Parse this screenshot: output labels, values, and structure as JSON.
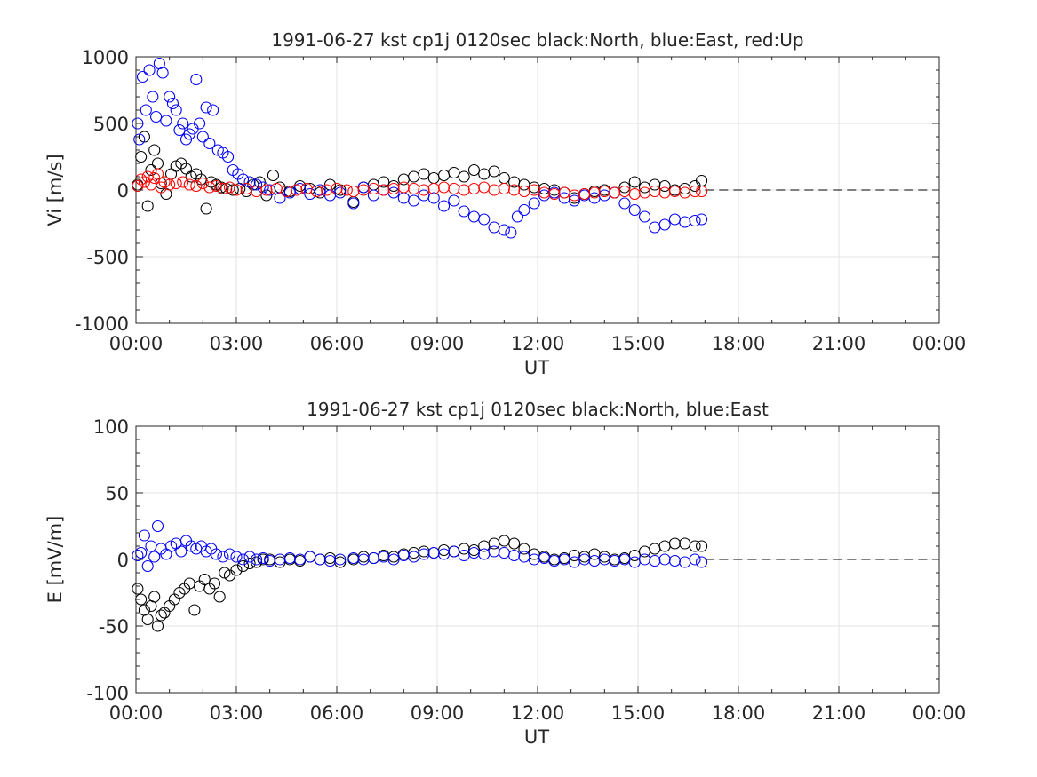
{
  "chart_data": [
    {
      "type": "scatter",
      "title": "1991-06-27 kst cp1j 0120sec black:North, blue:East, red:Up",
      "xlabel": "UT",
      "ylabel": "Vi [m/s]",
      "xlim": [
        0,
        24
      ],
      "ylim": [
        -1000,
        1000
      ],
      "x_unit": "hours UT",
      "xticks": [
        "00:00",
        "03:00",
        "06:00",
        "09:00",
        "12:00",
        "15:00",
        "18:00",
        "21:00",
        "00:00"
      ],
      "yticks": [
        "1000",
        "500",
        "0",
        "-500",
        "-1000"
      ],
      "ytick_values": [
        1000,
        500,
        0,
        -500,
        -1000
      ],
      "grid": true,
      "zero_line": {
        "from_x": 17.0,
        "to_x": 24,
        "y": 0,
        "style": "dashed"
      },
      "series": [
        {
          "color": "#000000",
          "x": [
            0.05,
            0.15,
            0.25,
            0.35,
            0.45,
            0.55,
            0.65,
            0.75,
            0.9,
            1.05,
            1.2,
            1.35,
            1.5,
            1.65,
            1.8,
            1.95,
            2.1,
            2.25,
            2.4,
            2.55,
            2.7,
            2.9,
            3.1,
            3.3,
            3.5,
            3.7,
            3.9,
            4.1,
            4.3,
            4.6,
            4.9,
            5.2,
            5.5,
            5.8,
            6.1,
            6.5,
            6.8,
            7.1,
            7.4,
            7.7,
            8.0,
            8.3,
            8.6,
            8.9,
            9.2,
            9.5,
            9.8,
            10.1,
            10.4,
            10.7,
            11.0,
            11.3,
            11.6,
            11.9,
            12.2,
            12.5,
            12.8,
            13.1,
            13.4,
            13.7,
            14.0,
            14.3,
            14.6,
            14.9,
            15.2,
            15.5,
            15.8,
            16.1,
            16.4,
            16.7,
            16.9
          ],
          "y": [
            40,
            250,
            400,
            -120,
            150,
            300,
            200,
            50,
            -30,
            120,
            180,
            200,
            160,
            100,
            120,
            80,
            -140,
            60,
            40,
            20,
            10,
            0,
            10,
            -10,
            40,
            60,
            -40,
            110,
            20,
            -10,
            30,
            10,
            -20,
            40,
            0,
            -90,
            20,
            40,
            60,
            30,
            80,
            100,
            120,
            90,
            110,
            130,
            100,
            150,
            120,
            140,
            90,
            60,
            40,
            20,
            10,
            0,
            -20,
            -60,
            -30,
            -10,
            0,
            -20,
            20,
            60,
            20,
            40,
            30,
            0,
            10,
            30,
            70
          ]
        },
        {
          "color": "#0000ff",
          "x": [
            0.05,
            0.1,
            0.2,
            0.3,
            0.4,
            0.5,
            0.6,
            0.7,
            0.8,
            0.9,
            1.0,
            1.1,
            1.2,
            1.3,
            1.4,
            1.5,
            1.6,
            1.7,
            1.8,
            1.9,
            2.0,
            2.1,
            2.2,
            2.3,
            2.45,
            2.6,
            2.75,
            2.9,
            3.05,
            3.2,
            3.4,
            3.6,
            3.8,
            4.0,
            4.3,
            4.6,
            4.9,
            5.2,
            5.5,
            5.8,
            6.1,
            6.5,
            6.8,
            7.1,
            7.4,
            7.7,
            8.0,
            8.3,
            8.6,
            8.9,
            9.2,
            9.5,
            9.8,
            10.1,
            10.4,
            10.7,
            11.0,
            11.2,
            11.4,
            11.6,
            11.9,
            12.2,
            12.5,
            12.8,
            13.1,
            13.4,
            13.7,
            14.0,
            14.3,
            14.6,
            14.9,
            15.2,
            15.5,
            15.8,
            16.1,
            16.4,
            16.7,
            16.9
          ],
          "y": [
            500,
            380,
            850,
            600,
            900,
            700,
            550,
            950,
            880,
            520,
            700,
            650,
            600,
            450,
            500,
            380,
            420,
            460,
            830,
            500,
            400,
            620,
            350,
            600,
            300,
            280,
            250,
            150,
            120,
            80,
            60,
            40,
            20,
            0,
            -60,
            -20,
            10,
            -30,
            0,
            -40,
            -20,
            -100,
            20,
            -40,
            0,
            -20,
            -60,
            -80,
            -40,
            -60,
            -120,
            -80,
            -160,
            -200,
            -220,
            -280,
            -300,
            -320,
            -200,
            -150,
            -100,
            -40,
            -20,
            -60,
            -80,
            -40,
            -60,
            -40,
            -20,
            -100,
            -150,
            -200,
            -280,
            -260,
            -220,
            -240,
            -230,
            -220
          ]
        },
        {
          "color": "#ff0000",
          "x": [
            0.05,
            0.15,
            0.25,
            0.35,
            0.45,
            0.55,
            0.65,
            0.75,
            0.85,
            1.0,
            1.2,
            1.4,
            1.6,
            1.8,
            2.0,
            2.2,
            2.4,
            2.6,
            2.8,
            3.0,
            3.3,
            3.6,
            3.9,
            4.2,
            4.5,
            4.8,
            5.1,
            5.4,
            5.7,
            6.0,
            6.3,
            6.5,
            6.8,
            7.1,
            7.4,
            7.7,
            8.0,
            8.3,
            8.6,
            8.9,
            9.2,
            9.5,
            9.8,
            10.1,
            10.4,
            10.7,
            11.0,
            11.3,
            11.6,
            11.9,
            12.2,
            12.5,
            12.8,
            13.1,
            13.4,
            13.7,
            14.0,
            14.3,
            14.6,
            14.9,
            15.2,
            15.5,
            15.8,
            16.1,
            16.4,
            16.7,
            16.9
          ],
          "y": [
            30,
            80,
            60,
            100,
            40,
            90,
            120,
            20,
            60,
            40,
            50,
            60,
            40,
            30,
            50,
            20,
            30,
            10,
            20,
            0,
            10,
            -10,
            0,
            10,
            -10,
            0,
            10,
            -10,
            0,
            10,
            0,
            -10,
            0,
            10,
            0,
            10,
            20,
            10,
            0,
            10,
            20,
            10,
            0,
            10,
            20,
            0,
            10,
            0,
            -10,
            0,
            -20,
            -30,
            -20,
            -40,
            -30,
            -20,
            -10,
            -20,
            -10,
            -30,
            -20,
            -10,
            -20,
            -10,
            -20,
            -10,
            -10
          ]
        }
      ]
    },
    {
      "type": "scatter",
      "title": "1991-06-27 kst cp1j 0120sec black:North, blue:East",
      "xlabel": "UT",
      "ylabel": "E [mV/m]",
      "xlim": [
        0,
        24
      ],
      "ylim": [
        -100,
        100
      ],
      "x_unit": "hours UT",
      "xticks": [
        "00:00",
        "03:00",
        "06:00",
        "09:00",
        "12:00",
        "15:00",
        "18:00",
        "21:00",
        "00:00"
      ],
      "yticks": [
        "100",
        "50",
        "0",
        "-50",
        "-100"
      ],
      "ytick_values": [
        100,
        50,
        0,
        -50,
        -100
      ],
      "grid": true,
      "zero_line": {
        "from_x": 17.0,
        "to_x": 24,
        "y": 0,
        "style": "dashed"
      },
      "series": [
        {
          "color": "#000000",
          "x": [
            0.05,
            0.15,
            0.25,
            0.35,
            0.45,
            0.55,
            0.65,
            0.75,
            0.85,
            1.0,
            1.15,
            1.3,
            1.45,
            1.6,
            1.75,
            1.9,
            2.05,
            2.2,
            2.35,
            2.5,
            2.65,
            2.8,
            3.0,
            3.2,
            3.4,
            3.6,
            3.8,
            4.0,
            4.3,
            4.6,
            4.9,
            5.2,
            5.5,
            5.8,
            6.1,
            6.5,
            6.8,
            7.1,
            7.4,
            7.7,
            8.0,
            8.3,
            8.6,
            8.9,
            9.2,
            9.5,
            9.8,
            10.1,
            10.4,
            10.7,
            11.0,
            11.3,
            11.6,
            11.9,
            12.2,
            12.5,
            12.8,
            13.1,
            13.4,
            13.7,
            14.0,
            14.3,
            14.6,
            14.9,
            15.2,
            15.5,
            15.8,
            16.1,
            16.4,
            16.7,
            16.9
          ],
          "y": [
            -22,
            -30,
            -38,
            -45,
            -35,
            -28,
            -50,
            -42,
            -40,
            -35,
            -30,
            -25,
            -22,
            -18,
            -38,
            -20,
            -15,
            -22,
            -18,
            -28,
            -10,
            -12,
            -8,
            -5,
            -3,
            -2,
            0,
            0,
            -2,
            0,
            -1,
            2,
            0,
            1,
            -2,
            0,
            2,
            1,
            3,
            2,
            4,
            5,
            6,
            5,
            7,
            6,
            8,
            7,
            10,
            12,
            14,
            12,
            8,
            4,
            2,
            0,
            1,
            3,
            2,
            4,
            2,
            0,
            1,
            3,
            6,
            8,
            10,
            12,
            12,
            10,
            10
          ]
        },
        {
          "color": "#0000ff",
          "x": [
            0.05,
            0.15,
            0.25,
            0.35,
            0.45,
            0.55,
            0.65,
            0.75,
            0.9,
            1.05,
            1.2,
            1.35,
            1.5,
            1.65,
            1.8,
            1.95,
            2.1,
            2.25,
            2.4,
            2.6,
            2.8,
            3.0,
            3.2,
            3.4,
            3.6,
            3.8,
            4.0,
            4.3,
            4.6,
            4.9,
            5.2,
            5.5,
            5.8,
            6.1,
            6.5,
            6.8,
            7.1,
            7.4,
            7.7,
            8.0,
            8.3,
            8.6,
            8.9,
            9.2,
            9.5,
            9.8,
            10.1,
            10.4,
            10.7,
            11.0,
            11.3,
            11.6,
            11.9,
            12.2,
            12.5,
            12.8,
            13.1,
            13.4,
            13.7,
            14.0,
            14.3,
            14.6,
            14.9,
            15.2,
            15.5,
            15.8,
            16.1,
            16.4,
            16.7,
            16.9
          ],
          "y": [
            3,
            5,
            18,
            -5,
            10,
            2,
            25,
            8,
            4,
            10,
            12,
            6,
            14,
            10,
            8,
            10,
            6,
            8,
            4,
            2,
            4,
            2,
            0,
            2,
            0,
            1,
            -1,
            0,
            1,
            0,
            2,
            0,
            -1,
            0,
            1,
            0,
            1,
            2,
            0,
            3,
            2,
            4,
            5,
            4,
            6,
            3,
            5,
            4,
            6,
            5,
            3,
            2,
            0,
            1,
            -1,
            0,
            -2,
            0,
            -1,
            0,
            -1,
            0,
            -2,
            0,
            -1,
            0,
            -1,
            -2,
            0,
            -2
          ]
        }
      ]
    }
  ]
}
